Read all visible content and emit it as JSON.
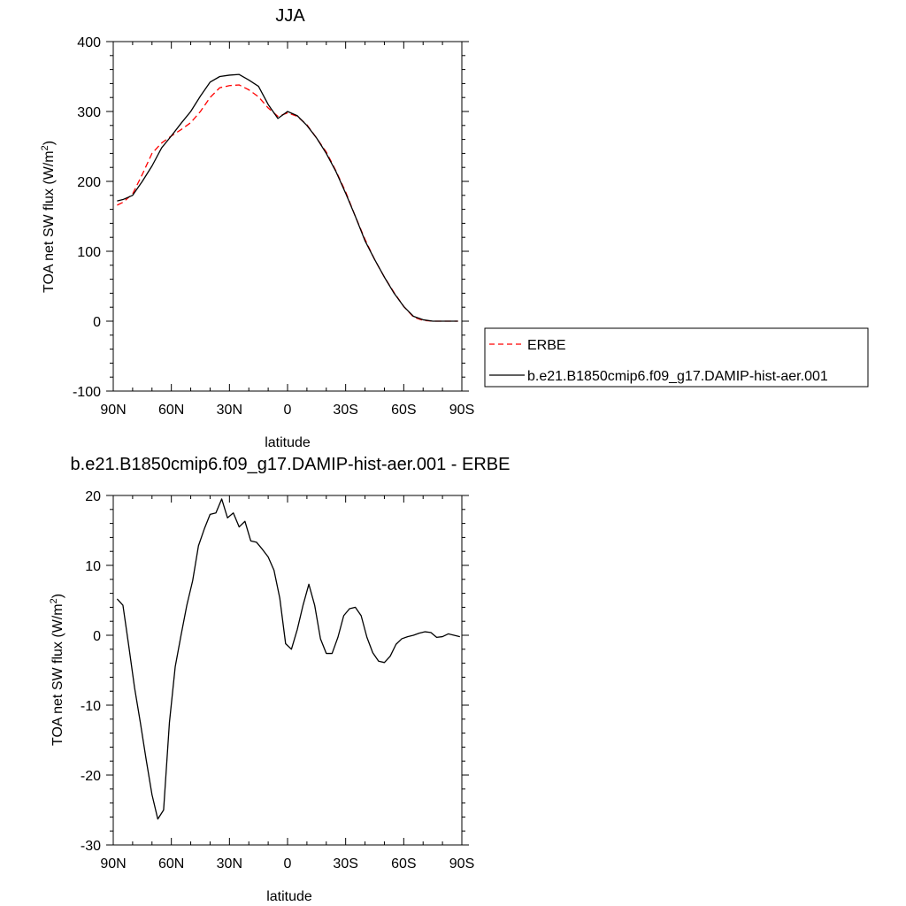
{
  "chart_data": [
    {
      "type": "line",
      "title": "JJA",
      "xlabel": "latitude",
      "ylabel": "TOA net SW flux (W/m2)",
      "ylabel_base": "TOA net SW flux (W/m",
      "ylabel_sup": "2",
      "ylabel_close": ")",
      "xlim": [
        90,
        -90
      ],
      "ylim": [
        -100,
        400
      ],
      "xticks": [
        90,
        60,
        30,
        0,
        -30,
        -60,
        -90
      ],
      "xtick_labels": [
        "90N",
        "60N",
        "30N",
        "0",
        "30S",
        "60S",
        "90S"
      ],
      "yticks": [
        -100,
        0,
        100,
        200,
        300,
        400
      ],
      "ytick_labels": [
        "-100",
        "0",
        "100",
        "200",
        "300",
        "400"
      ],
      "legend_position": "right",
      "series": [
        {
          "name": "ERBE",
          "color": "#ff0000",
          "style": "dashed",
          "x": [
            88,
            85,
            80,
            75,
            70,
            65,
            60,
            55,
            50,
            45,
            40,
            35,
            30,
            25,
            20,
            15,
            10,
            5,
            0,
            -5,
            -10,
            -15,
            -20,
            -25,
            -30,
            -35,
            -40,
            -45,
            -50,
            -55,
            -60,
            -65,
            -70,
            -75,
            -80,
            -85,
            -88
          ],
          "values": [
            166,
            170,
            182,
            210,
            240,
            255,
            265,
            274,
            284,
            300,
            320,
            334,
            337,
            338,
            331,
            321,
            305,
            293,
            298,
            293,
            281,
            262,
            242,
            215,
            185,
            150,
            117,
            88,
            63,
            41,
            21,
            6,
            1,
            0,
            0,
            0,
            0
          ]
        },
        {
          "name": "b.e21.B1850cmip6.f09_g17.DAMIP-hist-aer.001",
          "color": "#000000",
          "style": "solid",
          "x": [
            88,
            85,
            80,
            75,
            70,
            65,
            60,
            55,
            50,
            45,
            40,
            35,
            30,
            25,
            20,
            15,
            10,
            5,
            0,
            -5,
            -10,
            -15,
            -20,
            -25,
            -30,
            -35,
            -40,
            -45,
            -50,
            -55,
            -60,
            -65,
            -70,
            -75,
            -80,
            -85,
            -88
          ],
          "values": [
            172,
            174,
            180,
            200,
            222,
            248,
            265,
            283,
            300,
            322,
            342,
            350,
            352,
            353,
            345,
            336,
            310,
            290,
            300,
            294,
            280,
            262,
            240,
            214,
            183,
            150,
            115,
            88,
            63,
            40,
            21,
            7,
            2,
            0,
            0,
            0,
            0
          ]
        }
      ]
    },
    {
      "type": "line",
      "title": "b.e21.B1850cmip6.f09_g17.DAMIP-hist-aer.001 - ERBE",
      "xlabel": "latitude",
      "ylabel": "TOA net SW flux (W/m2)",
      "ylabel_base": "TOA net SW flux (W/m",
      "ylabel_sup": "2",
      "ylabel_close": ")",
      "xlim": [
        90,
        -90
      ],
      "ylim": [
        -30,
        20
      ],
      "xticks": [
        90,
        60,
        30,
        0,
        -30,
        -60,
        -90
      ],
      "xtick_labels": [
        "90N",
        "60N",
        "30N",
        "0",
        "30S",
        "60S",
        "90S"
      ],
      "yticks": [
        -30,
        -20,
        -10,
        0,
        10,
        20
      ],
      "ytick_labels": [
        "-30",
        "-20",
        "-10",
        "0",
        "10",
        "20"
      ],
      "series": [
        {
          "color": "#000000",
          "style": "solid",
          "x": [
            88,
            85,
            82,
            79,
            76,
            73,
            70,
            67,
            64,
            61,
            58,
            55,
            52,
            49,
            46,
            43,
            40,
            37,
            34,
            31,
            28,
            25,
            22,
            19,
            16,
            13,
            10,
            7,
            4,
            1,
            -2,
            -5,
            -8,
            -11,
            -14,
            -17,
            -20,
            -23,
            -26,
            -29,
            -32,
            -35,
            -38,
            -41,
            -44,
            -47,
            -50,
            -53,
            -56,
            -59,
            -62,
            -65,
            -68,
            -71,
            -74,
            -77,
            -80,
            -83,
            -86,
            -89
          ],
          "values": [
            5.2,
            4.3,
            -1.5,
            -7.5,
            -12.5,
            -17.8,
            -22.8,
            -26.3,
            -25.0,
            -12.5,
            -4.5,
            0.0,
            4.3,
            7.8,
            12.8,
            15.2,
            17.3,
            17.5,
            19.5,
            16.8,
            17.5,
            15.5,
            16.3,
            13.5,
            13.3,
            12.3,
            11.2,
            9.3,
            5.3,
            -1.2,
            -2.0,
            0.8,
            4.3,
            7.3,
            4.3,
            -0.5,
            -2.6,
            -2.6,
            -0.3,
            2.8,
            3.8,
            4.0,
            2.8,
            -0.3,
            -2.5,
            -3.7,
            -3.9,
            -3.0,
            -1.3,
            -0.5,
            -0.2,
            0.0,
            0.3,
            0.5,
            0.4,
            -0.3,
            -0.2,
            0.2,
            0.0,
            -0.2
          ]
        }
      ]
    }
  ]
}
